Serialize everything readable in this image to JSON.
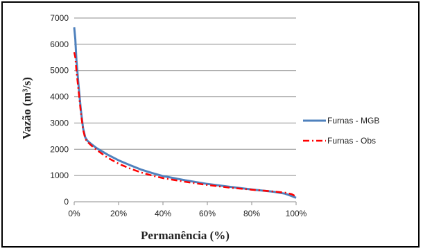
{
  "chart_data": {
    "type": "line",
    "xlabel": "Permanência (%)",
    "ylabel": "Vazão (m³/s)",
    "xlim": [
      0,
      100
    ],
    "ylim": [
      0,
      7000
    ],
    "x_ticks": [
      0,
      20,
      40,
      60,
      80,
      100
    ],
    "x_tick_labels": [
      "0%",
      "20%",
      "40%",
      "60%",
      "80%",
      "100%"
    ],
    "y_ticks": [
      0,
      1000,
      2000,
      3000,
      4000,
      5000,
      6000,
      7000
    ],
    "y_tick_labels": [
      "0",
      "1000",
      "2000",
      "3000",
      "4000",
      "5000",
      "6000",
      "7000"
    ],
    "grid": "horizontal",
    "legend_position": "right",
    "series": [
      {
        "name": "Furnas - MGB",
        "color": "#4f81bd",
        "style": "solid",
        "x": [
          0,
          0.5,
          1,
          2,
          3,
          4,
          5,
          6,
          8,
          10,
          15,
          20,
          25,
          30,
          35,
          40,
          50,
          60,
          70,
          80,
          90,
          95,
          98,
          100
        ],
        "y": [
          6650,
          6200,
          5400,
          4400,
          3500,
          2800,
          2450,
          2320,
          2180,
          2050,
          1800,
          1580,
          1400,
          1230,
          1100,
          980,
          820,
          680,
          570,
          470,
          380,
          310,
          220,
          150
        ]
      },
      {
        "name": "Furnas - Obs",
        "color": "#ff0000",
        "style": "dash-dot",
        "x": [
          0,
          0.5,
          1,
          2,
          3,
          4,
          5,
          6,
          8,
          10,
          15,
          20,
          25,
          30,
          35,
          40,
          50,
          60,
          70,
          80,
          90,
          95,
          98,
          100
        ],
        "y": [
          5700,
          5500,
          5000,
          4200,
          3400,
          2750,
          2400,
          2280,
          2120,
          1980,
          1680,
          1450,
          1270,
          1120,
          1000,
          900,
          760,
          640,
          540,
          460,
          390,
          350,
          290,
          200
        ]
      }
    ]
  }
}
